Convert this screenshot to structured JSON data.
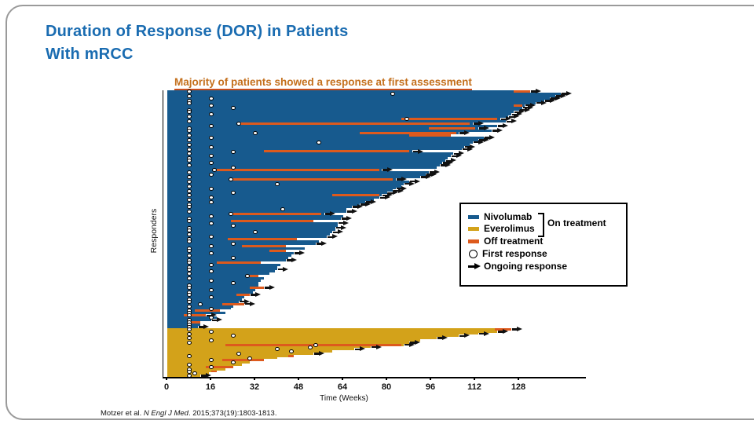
{
  "slide": {
    "title_line1": "Duration of Response (DOR) in Patients",
    "title_line2": "With mRCC",
    "citation": {
      "prefix": "Motzer et al. ",
      "journal": "N Engl J Med",
      "suffix": ". 2015;373(19):1803-1813."
    }
  },
  "colors": {
    "title_blue": "#1a6cb1",
    "subtitle_orange": "#c4701d",
    "nivolumab_blue": "#175a8e",
    "everolimus_gold": "#d3a21a",
    "off_treatment_orange": "#dd5a1d",
    "marker_black": "#111111"
  },
  "legend": {
    "items": [
      {
        "label": "Nivolumab",
        "swatch": "nivolumab-swatch"
      },
      {
        "label": "Everolimus",
        "swatch": "everolimus-swatch"
      },
      {
        "label": "Off treatment",
        "swatch": "off-treatment-swatch"
      },
      {
        "label": "First response",
        "swatch": "first-response-circle"
      },
      {
        "label": "Ongoing response",
        "swatch": "ongoing-response-arrow"
      }
    ],
    "on_treatment_label": "On treatment"
  },
  "chart_data": {
    "type": "bar",
    "subtype": "swimmer-plot",
    "title": "Majority of patients showed a response at first assessment",
    "xlabel": "Time (Weeks)",
    "ylabel": "Responders",
    "x_ticks": [
      0,
      16,
      32,
      48,
      64,
      80,
      96,
      112,
      128
    ],
    "xlim": [
      0,
      152
    ],
    "grid": false,
    "legend_position": "right-middle",
    "row_schema": [
      "duration_weeks",
      "first_response_week",
      "off_treatment_segment_weeks",
      "ongoing_response"
    ],
    "series": [
      {
        "name": "Nivolumab",
        "color": "#175a8e",
        "rows": [
          [
            132,
            8,
            [
              126,
              132
            ],
            1
          ],
          [
            143,
            82,
            null,
            1
          ],
          [
            141,
            8,
            null,
            1
          ],
          [
            139,
            16,
            null,
            1
          ],
          [
            137,
            8,
            null,
            1
          ],
          [
            134,
            8,
            null,
            1
          ],
          [
            130,
            16,
            [
              126,
              129
            ],
            1
          ],
          [
            129,
            24,
            null,
            1
          ],
          [
            128,
            8,
            null,
            1
          ],
          [
            126,
            8,
            null,
            1
          ],
          [
            125,
            16,
            null,
            1
          ],
          [
            124,
            8,
            null,
            1
          ],
          [
            121,
            87,
            [
              85,
              120
            ],
            1
          ],
          [
            123,
            8,
            null,
            1
          ],
          [
            111,
            26,
            [
              26,
              110
            ],
            1
          ],
          [
            120,
            16,
            null,
            1
          ],
          [
            113,
            8,
            [
              95,
              112
            ],
            1
          ],
          [
            118,
            8,
            null,
            1
          ],
          [
            106,
            32,
            [
              70,
              105
            ],
            1
          ],
          [
            103,
            8,
            [
              88,
              103
            ],
            0
          ],
          [
            115,
            16,
            null,
            1
          ],
          [
            113,
            8,
            null,
            1
          ],
          [
            111,
            55,
            null,
            1
          ],
          [
            110,
            8,
            null,
            0
          ],
          [
            108,
            16,
            null,
            1
          ],
          [
            107,
            8,
            null,
            1
          ],
          [
            89,
            24,
            [
              35,
              88
            ],
            1
          ],
          [
            104,
            8,
            null,
            1
          ],
          [
            103,
            16,
            null,
            1
          ],
          [
            102,
            8,
            null,
            0
          ],
          [
            101,
            8,
            null,
            1
          ],
          [
            100,
            16,
            null,
            1
          ],
          [
            99,
            8,
            null,
            1
          ],
          [
            98,
            24,
            null,
            0
          ],
          [
            78,
            17,
            [
              18,
              77
            ],
            1
          ],
          [
            95,
            8,
            null,
            1
          ],
          [
            94,
            16,
            null,
            1
          ],
          [
            92,
            8,
            null,
            1
          ],
          [
            83,
            23,
            [
              23,
              82
            ],
            1
          ],
          [
            88,
            8,
            null,
            1
          ],
          [
            86,
            40,
            null,
            1
          ],
          [
            85,
            8,
            null,
            0
          ],
          [
            83,
            16,
            null,
            1
          ],
          [
            82,
            8,
            null,
            1
          ],
          [
            80,
            24,
            null,
            1
          ],
          [
            78,
            8,
            [
              60,
              77
            ],
            1
          ],
          [
            77,
            16,
            null,
            1
          ],
          [
            75,
            8,
            null,
            0
          ],
          [
            72,
            16,
            null,
            1
          ],
          [
            70,
            8,
            null,
            1
          ],
          [
            67,
            8,
            null,
            1
          ],
          [
            65,
            42,
            null,
            0
          ],
          [
            65,
            8,
            null,
            1
          ],
          [
            57,
            23,
            [
              23,
              56
            ],
            1
          ],
          [
            64,
            16,
            null,
            0
          ],
          [
            63,
            8,
            null,
            1
          ],
          [
            53,
            8,
            [
              23,
              53
            ],
            0
          ],
          [
            62,
            16,
            null,
            1
          ],
          [
            62,
            24,
            null,
            0
          ],
          [
            61,
            8,
            null,
            1
          ],
          [
            61,
            8,
            null,
            0
          ],
          [
            60,
            32,
            null,
            1
          ],
          [
            59,
            8,
            null,
            0
          ],
          [
            58,
            16,
            null,
            1
          ],
          [
            47,
            8,
            [
              22,
              47
            ],
            0
          ],
          [
            55,
            8,
            null,
            0
          ],
          [
            54,
            24,
            null,
            1
          ],
          [
            43,
            16,
            [
              27,
              43
            ],
            0
          ],
          [
            50,
            8,
            null,
            0
          ],
          [
            43,
            8,
            [
              37,
              43
            ],
            0
          ],
          [
            46,
            16,
            null,
            1
          ],
          [
            45,
            8,
            null,
            0
          ],
          [
            44,
            24,
            null,
            0
          ],
          [
            43,
            8,
            null,
            1
          ],
          [
            34,
            8,
            [
              18,
              34
            ],
            0
          ],
          [
            41,
            16,
            null,
            0
          ],
          [
            40,
            8,
            null,
            0
          ],
          [
            40,
            8,
            null,
            1
          ],
          [
            39,
            16,
            null,
            0
          ],
          [
            37,
            8,
            null,
            0
          ],
          [
            33,
            29,
            [
              29,
              33
            ],
            0
          ],
          [
            35,
            8,
            null,
            0
          ],
          [
            34,
            16,
            null,
            0
          ],
          [
            33,
            24,
            null,
            0
          ],
          [
            33,
            8,
            null,
            0
          ],
          [
            35,
            8,
            [
              30,
              35
            ],
            1
          ],
          [
            32,
            16,
            null,
            0
          ],
          [
            31,
            8,
            null,
            0
          ],
          [
            30,
            8,
            [
              25,
              30
            ],
            1
          ],
          [
            28,
            16,
            null,
            0
          ],
          [
            27,
            8,
            null,
            0
          ],
          [
            26,
            8,
            null,
            1
          ],
          [
            28,
            12,
            [
              20,
              28
            ],
            1
          ],
          [
            24,
            8,
            null,
            0
          ],
          [
            23,
            16,
            null,
            0
          ],
          [
            19,
            8,
            [
              10,
              19
            ],
            0
          ],
          [
            21,
            8,
            null,
            0
          ],
          [
            14,
            8,
            [
              6,
              14
            ],
            1
          ],
          [
            18,
            16,
            null,
            0
          ],
          [
            16,
            8,
            null,
            1
          ],
          [
            12,
            8,
            [
              8,
              12
            ],
            0
          ],
          [
            12,
            8,
            null,
            0
          ],
          [
            11,
            8,
            null,
            1
          ]
        ]
      },
      {
        "name": "Everolimus",
        "color": "#d3a21a",
        "rows": [
          [
            125,
            8,
            [
              119,
              125
            ],
            1
          ],
          [
            120,
            16,
            null,
            1
          ],
          [
            113,
            8,
            null,
            1
          ],
          [
            106,
            24,
            null,
            1
          ],
          [
            98,
            8,
            null,
            1
          ],
          [
            92,
            16,
            null,
            0
          ],
          [
            88,
            8,
            null,
            1
          ],
          [
            86,
            54,
            [
              21,
              85
            ],
            1
          ],
          [
            74,
            52,
            null,
            1
          ],
          [
            68,
            40,
            null,
            1
          ],
          [
            60,
            45,
            null,
            0
          ],
          [
            53,
            26,
            null,
            1
          ],
          [
            46,
            8,
            [
              44,
              46
            ],
            0
          ],
          [
            40,
            30,
            null,
            0
          ],
          [
            35,
            16,
            [
              20,
              35
            ],
            0
          ],
          [
            30,
            24,
            null,
            0
          ],
          [
            27,
            8,
            null,
            0
          ],
          [
            24,
            16,
            [
              14,
              24
            ],
            0
          ],
          [
            21,
            8,
            null,
            0
          ],
          [
            18,
            8,
            [
              16,
              18
            ],
            0
          ],
          [
            15,
            10,
            null,
            0
          ],
          [
            12,
            8,
            null,
            1
          ]
        ]
      }
    ],
    "annotations": {
      "on_treatment_colors": [
        "Nivolumab",
        "Everolimus"
      ],
      "off_treatment_color_label": "Off treatment",
      "first_response_marker": "open circle",
      "ongoing_response_marker": "black arrow"
    }
  }
}
